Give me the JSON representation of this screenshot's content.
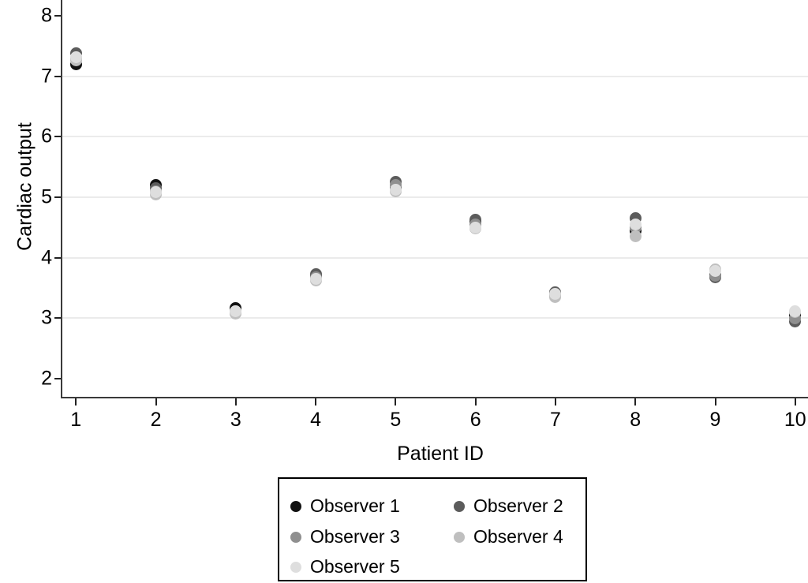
{
  "chart_data": {
    "type": "scatter",
    "title": "",
    "xlabel": "Patient ID",
    "ylabel": "Cardiac output",
    "x": [
      1,
      2,
      3,
      4,
      5,
      6,
      7,
      8,
      9,
      10
    ],
    "xtick_labels": [
      "1",
      "2",
      "3",
      "4",
      "5",
      "6",
      "7",
      "8",
      "9",
      "10"
    ],
    "ytick_values": [
      2,
      3,
      4,
      5,
      6,
      7,
      8
    ],
    "ytick_labels": [
      "2",
      "3",
      "4",
      "5",
      "6",
      "7",
      "8"
    ],
    "gridlines_at": [
      3,
      4,
      5,
      6,
      7
    ],
    "xlim": [
      0.82,
      10.16
    ],
    "ylim": [
      1.7,
      8.26
    ],
    "grid": "horizontal",
    "legend_position": "below-bottom-center",
    "marker_shape": "circle",
    "series": [
      {
        "name": "Observer 1",
        "color": "#111111",
        "values": [
          7.2,
          5.2,
          3.17,
          3.7,
          5.15,
          4.6,
          3.4,
          4.45,
          3.72,
          3.05
        ]
      },
      {
        "name": "Observer 2",
        "color": "#5c5c5c",
        "values": [
          7.38,
          5.15,
          3.12,
          3.73,
          5.25,
          4.63,
          3.43,
          4.65,
          3.68,
          2.95
        ]
      },
      {
        "name": "Observer 3",
        "color": "#8f8f8f",
        "values": [
          7.3,
          5.1,
          3.1,
          3.68,
          5.2,
          4.55,
          3.38,
          4.5,
          3.7,
          3.0
        ]
      },
      {
        "name": "Observer 4",
        "color": "#bfbfbf",
        "values": [
          7.26,
          5.05,
          3.08,
          3.62,
          5.1,
          4.48,
          3.35,
          4.35,
          3.8,
          3.1
        ]
      },
      {
        "name": "Observer 5",
        "color": "#dedede",
        "values": [
          7.32,
          5.08,
          3.12,
          3.65,
          5.12,
          4.5,
          3.4,
          4.55,
          3.78,
          3.12
        ]
      }
    ]
  },
  "colors": {
    "axis": "#3a3a3a",
    "gridline": "#ebebeb",
    "background": "#ffffff",
    "legend_border": "#000000"
  }
}
